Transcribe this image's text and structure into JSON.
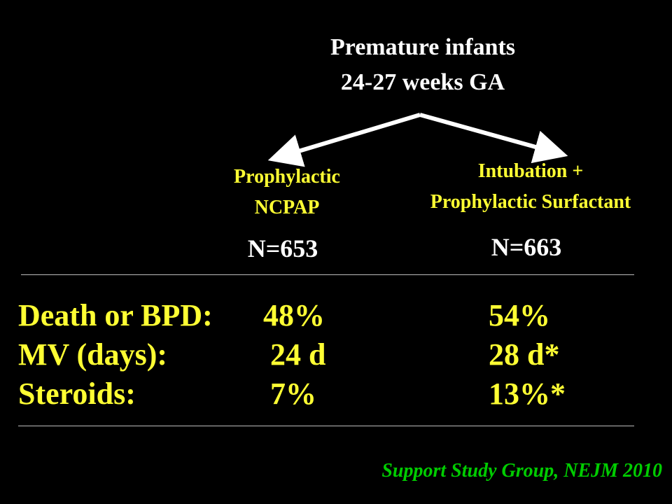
{
  "top": {
    "line1": "Premature infants",
    "line2": "24-27 weeks GA"
  },
  "left": {
    "line1": "Prophylactic",
    "line2": "NCPAP",
    "n": "N=653"
  },
  "right": {
    "line1": "Intubation +",
    "line2": "Prophylactic Surfactant",
    "n": "N=663"
  },
  "rows": [
    {
      "label": "Death or BPD:",
      "left": "48%",
      "right": "54%"
    },
    {
      "label": "MV (days):",
      "left": "24 d",
      "right": "28 d*"
    },
    {
      "label": "Steroids:",
      "left": "7%",
      "right": "13%*"
    }
  ],
  "citation": "Support Study Group, NEJM 2010",
  "colors": {
    "background": "#000000",
    "heading": "#ffffff",
    "branch": "#ffff33",
    "citation": "#00cc00"
  }
}
